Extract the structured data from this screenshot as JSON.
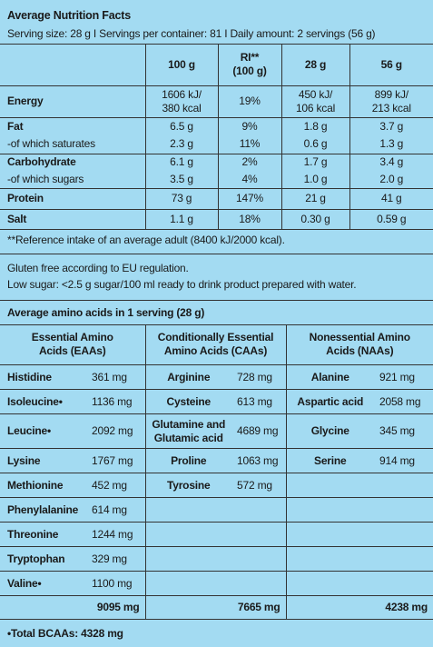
{
  "header": {
    "title": "Average Nutrition Facts",
    "serving": "Serving size: 28 g I Servings per container: 81 I Daily amount: 2 servings (56 g)"
  },
  "nutrition": {
    "columns": [
      "100 g",
      [
        "RI**",
        "(100 g)"
      ],
      "28 g",
      "56 g"
    ],
    "groups": [
      [
        {
          "label": "Energy",
          "values": [
            [
              "1606 kJ/",
              "380 kcal"
            ],
            "19%",
            [
              "450 kJ/",
              "106 kcal"
            ],
            [
              "899 kJ/",
              "213 kcal"
            ]
          ]
        }
      ],
      [
        {
          "label": "Fat",
          "values": [
            "6.5 g",
            "9%",
            "1.8 g",
            "3.7 g"
          ]
        },
        {
          "label": "-of which saturates",
          "values": [
            "2.3 g",
            "11%",
            "0.6 g",
            "1.3 g"
          ]
        }
      ],
      [
        {
          "label": "Carbohydrate",
          "values": [
            "6.1 g",
            "2%",
            "1.7 g",
            "3.4 g"
          ]
        },
        {
          "label": "-of which sugars",
          "values": [
            "3.5 g",
            "4%",
            "1.0 g",
            "2.0 g"
          ]
        }
      ],
      [
        {
          "label": "Protein",
          "values": [
            "73 g",
            "147%",
            "21 g",
            "41 g"
          ]
        }
      ],
      [
        {
          "label": "Salt",
          "values": [
            "1.1 g",
            "18%",
            "0.30 g",
            "0.59 g"
          ]
        }
      ]
    ],
    "footnote": "**Reference intake of an average adult (8400 kJ/2000 kcal)."
  },
  "notes": [
    "Gluten free according to EU regulation.",
    "Low sugar: <2.5 g sugar/100 ml ready to drink product prepared with water."
  ],
  "amino": {
    "title": "Average amino acids in 1 serving (28 g)",
    "columns": [
      [
        "Essential Amino",
        "Acids (EAAs)"
      ],
      [
        "Conditionally Essential",
        "Amino Acids (CAAs)"
      ],
      [
        "Nonessential Amino",
        "Acids (NAAs)"
      ]
    ],
    "rows": [
      [
        {
          "name": "Histidine",
          "amount": "361 mg"
        },
        {
          "name": "Arginine",
          "amount": "728 mg"
        },
        {
          "name": "Alanine",
          "amount": "921 mg"
        }
      ],
      [
        {
          "name": "Isoleucine•",
          "amount": "1136 mg"
        },
        {
          "name": "Cysteine",
          "amount": "613 mg"
        },
        {
          "name": "Aspartic acid",
          "amount": "2058 mg"
        }
      ],
      [
        {
          "name": "Leucine•",
          "amount": "2092 mg"
        },
        {
          "name": [
            "Glutamine and",
            "Glutamic acid"
          ],
          "amount": "4689 mg"
        },
        {
          "name": "Glycine",
          "amount": "345 mg"
        }
      ],
      [
        {
          "name": "Lysine",
          "amount": "1767 mg"
        },
        {
          "name": "Proline",
          "amount": "1063 mg"
        },
        {
          "name": "Serine",
          "amount": "914 mg"
        }
      ],
      [
        {
          "name": "Methionine",
          "amount": "452 mg"
        },
        {
          "name": "Tyrosine",
          "amount": "572 mg"
        },
        null
      ],
      [
        {
          "name": "Phenylalanine",
          "amount": "614 mg"
        },
        null,
        null
      ],
      [
        {
          "name": "Threonine",
          "amount": "1244 mg"
        },
        null,
        null
      ],
      [
        {
          "name": "Tryptophan",
          "amount": "329 mg"
        },
        null,
        null
      ],
      [
        {
          "name": "Valine•",
          "amount": "1100 mg"
        },
        null,
        null
      ]
    ],
    "totals": [
      "9095 mg",
      "7665 mg",
      "4238 mg"
    ],
    "footer": "•Total BCAAs: 4328 mg"
  }
}
